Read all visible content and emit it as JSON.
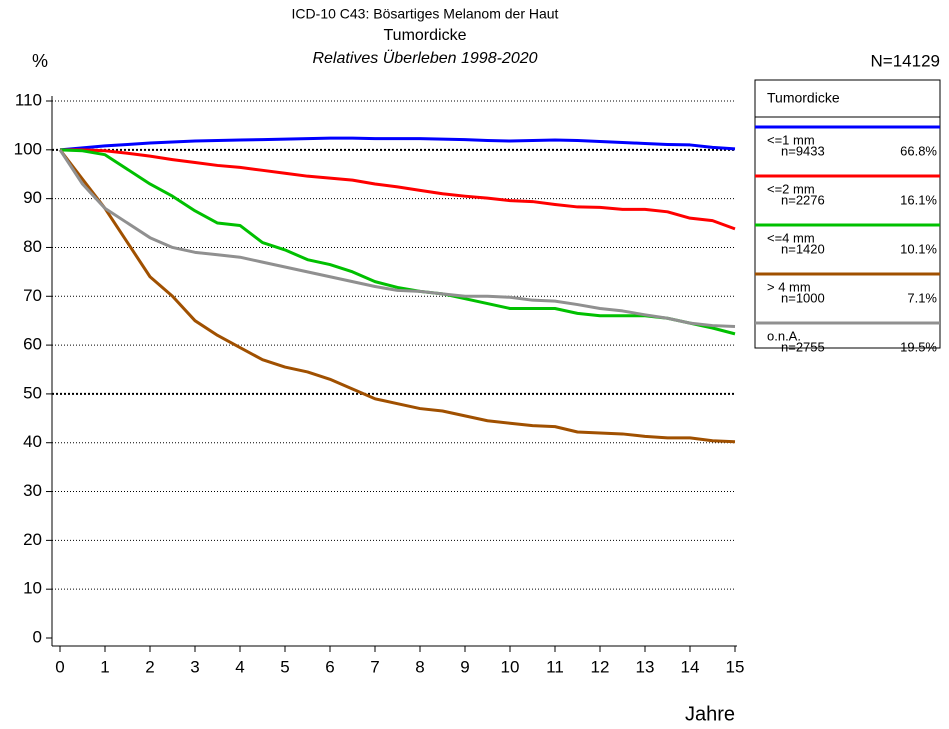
{
  "chart_data": {
    "type": "line",
    "title": "ICD-10 C43: Bösartiges Melanom der Haut",
    "subtitle": "Tumordicke",
    "subtitle2": "Relatives Überleben 1998-2020",
    "y_label": "%",
    "x_label": "Jahre",
    "total": "N=14129",
    "legend_title": "Tumordicke",
    "x": [
      0,
      0.5,
      1,
      1.5,
      2,
      2.5,
      3,
      3.5,
      4,
      4.5,
      5,
      5.5,
      6,
      6.5,
      7,
      7.5,
      8,
      8.5,
      9,
      9.5,
      10,
      10.5,
      11,
      11.5,
      12,
      12.5,
      13,
      13.5,
      14,
      14.5,
      15
    ],
    "series": [
      {
        "name": "<=1 mm",
        "n": "n=9433",
        "share": "66.8%",
        "color": "#0000ff",
        "values": [
          100,
          100.4,
          100.8,
          101.1,
          101.4,
          101.6,
          101.8,
          101.9,
          102,
          102.1,
          102.2,
          102.3,
          102.4,
          102.4,
          102.3,
          102.3,
          102.3,
          102.2,
          102.1,
          101.9,
          101.8,
          101.9,
          102,
          101.9,
          101.7,
          101.5,
          101.3,
          101.1,
          101,
          100.5,
          100.2
        ]
      },
      {
        "name": "<=2 mm",
        "n": "n=2276",
        "share": "16.1%",
        "color": "#ff0000",
        "values": [
          100,
          100,
          99.8,
          99.3,
          98.7,
          98,
          97.4,
          96.8,
          96.4,
          95.8,
          95.2,
          94.6,
          94.2,
          93.8,
          93,
          92.4,
          91.7,
          91,
          90.5,
          90.1,
          89.6,
          89.4,
          88.8,
          88.3,
          88.2,
          87.8,
          87.8,
          87.3,
          86,
          85.5,
          83.8
        ]
      },
      {
        "name": "<=4 mm",
        "n": "n=1420",
        "share": "10.1%",
        "color": "#00c000",
        "values": [
          100,
          99.8,
          99,
          96,
          93,
          90.5,
          87.5,
          85,
          84.5,
          81,
          79.5,
          77.5,
          76.5,
          75,
          73,
          71.8,
          71,
          70.5,
          69.5,
          68.5,
          67.5,
          67.5,
          67.5,
          66.5,
          66,
          66,
          66,
          65.5,
          64.5,
          63.5,
          62.3
        ]
      },
      {
        "name": "> 4 mm",
        "n": "n=1000",
        "share": "7.1%",
        "color": "#a05000",
        "values": [
          100,
          94,
          88,
          81,
          74,
          70,
          65,
          62,
          59.5,
          57,
          55.5,
          54.5,
          53,
          51,
          49,
          48,
          47,
          46.5,
          45.5,
          44.5,
          44,
          43.5,
          43.3,
          42.2,
          42,
          41.8,
          41.3,
          41,
          41,
          40.4,
          40.2
        ]
      },
      {
        "name": "o.n.A.",
        "n": "n=2755",
        "share": "19.5%",
        "color": "#909090",
        "values": [
          100,
          93,
          88,
          85,
          82,
          80,
          79,
          78.5,
          78,
          77,
          76,
          75,
          74,
          73,
          72,
          71.2,
          71,
          70.5,
          70,
          70,
          69.8,
          69.2,
          69,
          68.3,
          67.5,
          67,
          66.2,
          65.5,
          64.5,
          64,
          63.8
        ]
      }
    ],
    "xlim": [
      0,
      15
    ],
    "xticks": [
      0,
      1,
      2,
      3,
      4,
      5,
      6,
      7,
      8,
      9,
      10,
      11,
      12,
      13,
      14,
      15
    ],
    "ylim": [
      0,
      110
    ],
    "yticks": [
      0,
      10,
      20,
      30,
      40,
      50,
      60,
      70,
      80,
      90,
      100,
      110
    ],
    "grid": true,
    "strong_grid": [
      50,
      100
    ],
    "legend": "right"
  }
}
